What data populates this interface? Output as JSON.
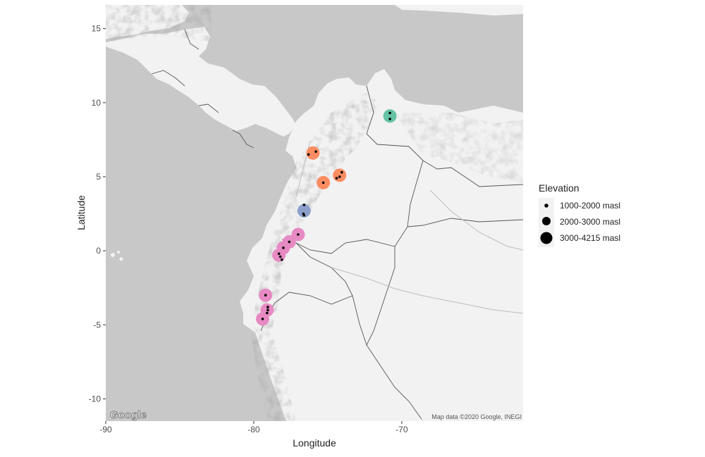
{
  "chart_data": {
    "type": "scatter",
    "xlabel": "Longitude",
    "ylabel": "Latitude",
    "xlim": [
      -90,
      -61.8
    ],
    "ylim": [
      -11.5,
      16.6
    ],
    "x_ticks": [
      -90,
      -80,
      -70
    ],
    "y_ticks": [
      15,
      10,
      5,
      0,
      -5,
      -10
    ],
    "x_tick_labels": [
      "-90",
      "-80",
      "-70"
    ],
    "y_tick_labels": [
      "15",
      "10",
      "5",
      "0",
      "-5",
      "-10"
    ],
    "grid": false,
    "legend_position": "right",
    "legend": {
      "title": "Elevation",
      "entries": [
        {
          "label": "1000-2000 masl",
          "size_class": "small"
        },
        {
          "label": "2000-3000 masl",
          "size_class": "medium"
        },
        {
          "label": "3000-4215 masl",
          "size_class": "large"
        }
      ]
    },
    "clusters": [
      {
        "color": "#66c2a5",
        "lon": -70.8,
        "lat": 9.1
      },
      {
        "color": "#fc8d62",
        "lon": -76.0,
        "lat": 6.6
      },
      {
        "color": "#fc8d62",
        "lon": -74.2,
        "lat": 5.1
      },
      {
        "color": "#fc8d62",
        "lon": -75.3,
        "lat": 4.6
      },
      {
        "color": "#8da0cb",
        "lon": -76.6,
        "lat": 2.7
      },
      {
        "color": "#e78ac3",
        "lon": -77.0,
        "lat": 1.1
      },
      {
        "color": "#e78ac3",
        "lon": -77.6,
        "lat": 0.6
      },
      {
        "color": "#e78ac3",
        "lon": -78.0,
        "lat": 0.2
      },
      {
        "color": "#e78ac3",
        "lon": -78.3,
        "lat": -0.3
      },
      {
        "color": "#e78ac3",
        "lon": -79.2,
        "lat": -3.0
      },
      {
        "color": "#e78ac3",
        "lon": -79.1,
        "lat": -4.0
      },
      {
        "color": "#e78ac3",
        "lon": -79.4,
        "lat": -4.6
      }
    ],
    "points": [
      {
        "lon": -70.8,
        "lat": 9.3
      },
      {
        "lon": -70.8,
        "lat": 8.9
      },
      {
        "lon": -76.3,
        "lat": 6.5
      },
      {
        "lon": -75.8,
        "lat": 6.7
      },
      {
        "lon": -74.4,
        "lat": 4.9
      },
      {
        "lon": -74.2,
        "lat": 5.0
      },
      {
        "lon": -74.05,
        "lat": 5.3
      },
      {
        "lon": -75.3,
        "lat": 4.6
      },
      {
        "lon": -76.6,
        "lat": 3.1
      },
      {
        "lon": -76.65,
        "lat": 2.5
      },
      {
        "lon": -76.6,
        "lat": 2.4
      },
      {
        "lon": -77.0,
        "lat": 1.1
      },
      {
        "lon": -77.6,
        "lat": 0.6
      },
      {
        "lon": -78.0,
        "lat": 0.2
      },
      {
        "lon": -78.3,
        "lat": -0.2
      },
      {
        "lon": -78.2,
        "lat": -0.4
      },
      {
        "lon": -78.1,
        "lat": -0.6
      },
      {
        "lon": -79.2,
        "lat": -3.0
      },
      {
        "lon": -79.05,
        "lat": -3.8
      },
      {
        "lon": -79.05,
        "lat": -4.0
      },
      {
        "lon": -79.1,
        "lat": -4.2
      },
      {
        "lon": -79.4,
        "lat": -4.6
      }
    ]
  },
  "map": {
    "ocean_color": "#c8c8c8",
    "land_color": "#f2f2f2",
    "border_color": "#555555",
    "logo_text": "Google",
    "attribution": "Map data ©2020 Google, INEGI"
  }
}
